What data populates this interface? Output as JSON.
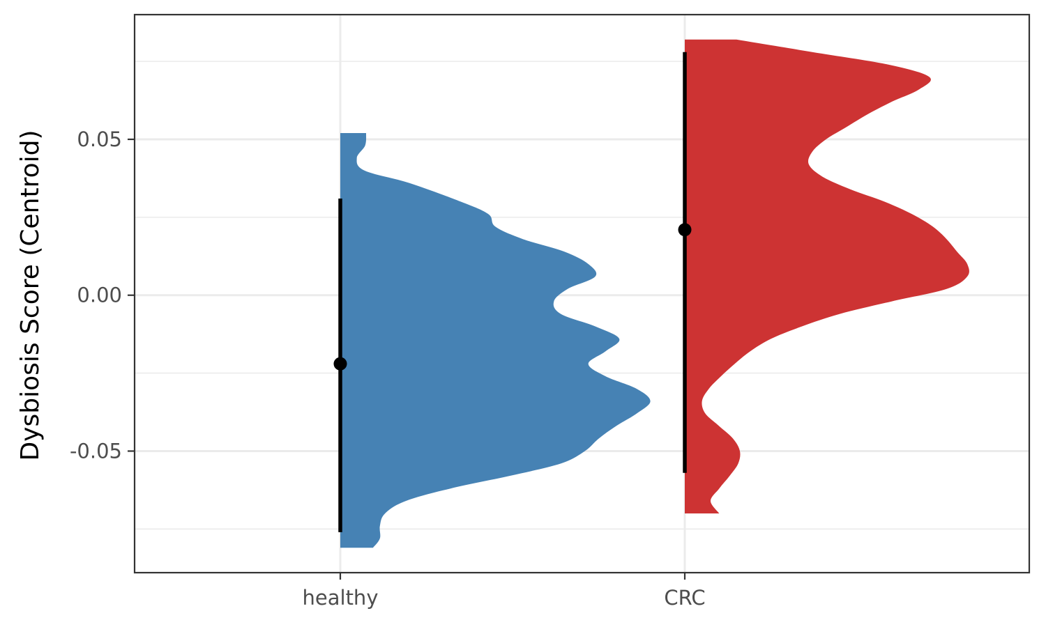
{
  "chart_data": {
    "type": "half-violin",
    "title": "",
    "xlabel": "",
    "ylabel": "Dysbiosis Score (Centroid)",
    "ylim": [
      -0.089,
      0.09
    ],
    "yticks": [
      -0.05,
      0.0,
      0.05
    ],
    "ytick_labels": [
      "-0.05",
      "0.00",
      "0.05"
    ],
    "y_minor_gridlines": [
      -0.075,
      -0.025,
      0.025,
      0.075
    ],
    "grid": true,
    "categories": [
      "healthy",
      "CRC"
    ],
    "series": [
      {
        "category": "healthy",
        "color": "#4682b4",
        "median": -0.022,
        "interval_range": [
          -0.076,
          0.031
        ],
        "density_range": [
          -0.081,
          0.052
        ],
        "density_profile": [
          [
            0.052,
            0.075
          ],
          [
            0.048,
            0.072
          ],
          [
            0.044,
            0.048
          ],
          [
            0.04,
            0.07
          ],
          [
            0.036,
            0.2
          ],
          [
            0.03,
            0.35
          ],
          [
            0.026,
            0.43
          ],
          [
            0.022,
            0.45
          ],
          [
            0.018,
            0.53
          ],
          [
            0.014,
            0.65
          ],
          [
            0.01,
            0.72
          ],
          [
            0.006,
            0.74
          ],
          [
            0.002,
            0.66
          ],
          [
            -0.002,
            0.62
          ],
          [
            -0.006,
            0.64
          ],
          [
            -0.01,
            0.74
          ],
          [
            -0.014,
            0.81
          ],
          [
            -0.018,
            0.77
          ],
          [
            -0.022,
            0.72
          ],
          [
            -0.026,
            0.77
          ],
          [
            -0.03,
            0.86
          ],
          [
            -0.034,
            0.9
          ],
          [
            -0.038,
            0.86
          ],
          [
            -0.042,
            0.8
          ],
          [
            -0.046,
            0.75
          ],
          [
            -0.05,
            0.71
          ],
          [
            -0.054,
            0.64
          ],
          [
            -0.058,
            0.49
          ],
          [
            -0.062,
            0.32
          ],
          [
            -0.066,
            0.19
          ],
          [
            -0.07,
            0.13
          ],
          [
            -0.074,
            0.115
          ],
          [
            -0.078,
            0.115
          ],
          [
            -0.081,
            0.095
          ]
        ]
      },
      {
        "category": "CRC",
        "color": "#cd3333",
        "median": 0.021,
        "interval_range": [
          -0.057,
          0.078
        ],
        "density_range": [
          -0.07,
          0.082
        ],
        "density_profile": [
          [
            0.082,
            0.15
          ],
          [
            0.078,
            0.37
          ],
          [
            0.074,
            0.59
          ],
          [
            0.07,
            0.71
          ],
          [
            0.066,
            0.68
          ],
          [
            0.062,
            0.6
          ],
          [
            0.058,
            0.53
          ],
          [
            0.054,
            0.47
          ],
          [
            0.05,
            0.41
          ],
          [
            0.046,
            0.37
          ],
          [
            0.042,
            0.36
          ],
          [
            0.038,
            0.4
          ],
          [
            0.034,
            0.48
          ],
          [
            0.03,
            0.58
          ],
          [
            0.026,
            0.66
          ],
          [
            0.022,
            0.72
          ],
          [
            0.018,
            0.76
          ],
          [
            0.014,
            0.79
          ],
          [
            0.01,
            0.82
          ],
          [
            0.006,
            0.82
          ],
          [
            0.002,
            0.76
          ],
          [
            -0.002,
            0.6
          ],
          [
            -0.006,
            0.45
          ],
          [
            -0.01,
            0.34
          ],
          [
            -0.014,
            0.25
          ],
          [
            -0.018,
            0.19
          ],
          [
            -0.022,
            0.145
          ],
          [
            -0.026,
            0.105
          ],
          [
            -0.03,
            0.07
          ],
          [
            -0.034,
            0.05
          ],
          [
            -0.038,
            0.06
          ],
          [
            -0.042,
            0.1
          ],
          [
            -0.046,
            0.14
          ],
          [
            -0.05,
            0.16
          ],
          [
            -0.054,
            0.155
          ],
          [
            -0.058,
            0.13
          ],
          [
            -0.062,
            0.1
          ],
          [
            -0.066,
            0.075
          ],
          [
            -0.07,
            0.1
          ]
        ]
      }
    ]
  }
}
